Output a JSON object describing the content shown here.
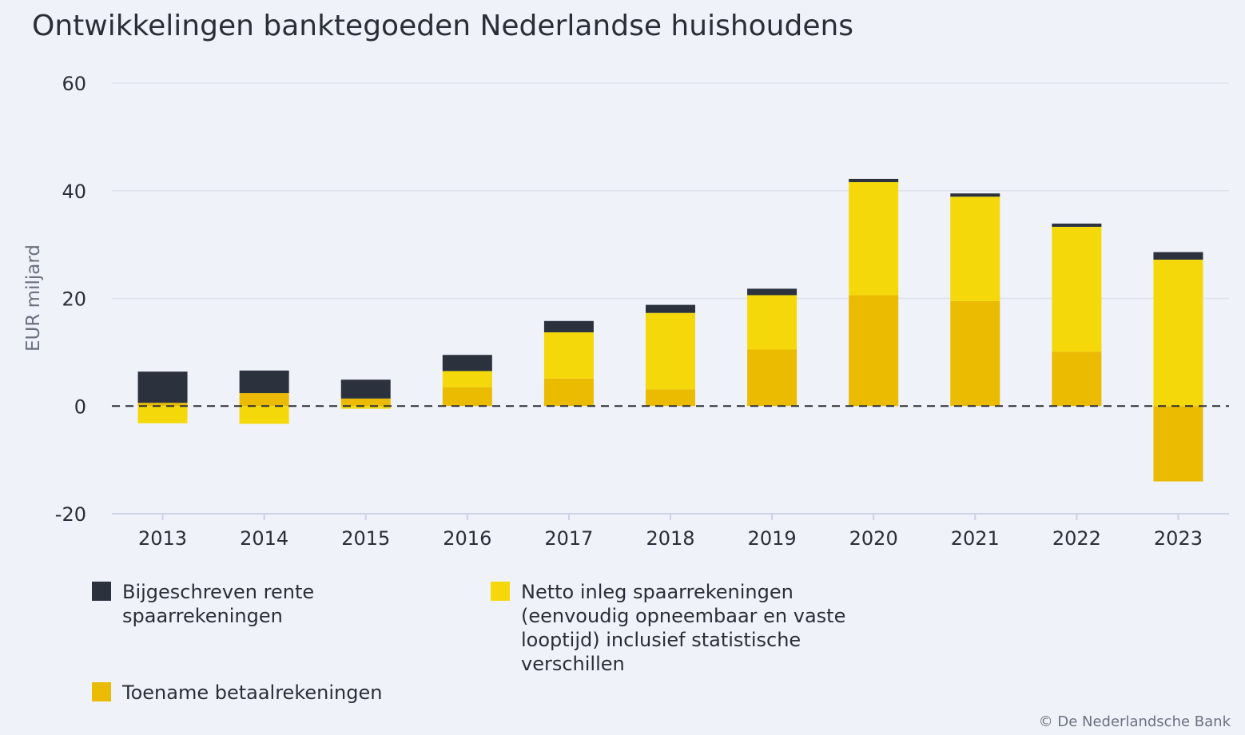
{
  "page": {
    "title": "Ontwikkelingen banktegoeden Nederlandse huishoudens",
    "copyright": "© De Nederlandsche Bank"
  },
  "colors": {
    "background": "#eff2f8",
    "rente": "#2b323e",
    "netto": "#f4d80a",
    "betaal": "#eabb00",
    "grid": "#dde1ea",
    "zero_line": "#2a2e36"
  },
  "chart_data": {
    "type": "bar",
    "stacked": true,
    "title": "Ontwikkelingen banktegoeden Nederlandse huishoudens",
    "xlabel": "",
    "ylabel": "EUR miljard",
    "ylim": [
      -20,
      60
    ],
    "yticks": [
      60,
      40,
      20,
      0,
      -20
    ],
    "ytick_labels": [
      "60",
      "40",
      "20",
      "0",
      "-20"
    ],
    "grid": true,
    "legend_position": "bottom",
    "categories": [
      "2013",
      "2014",
      "2015",
      "2016",
      "2017",
      "2018",
      "2019",
      "2020",
      "2021",
      "2022",
      "2023"
    ],
    "series": [
      {
        "key": "betaal",
        "name": "Toename betaalrekeningen",
        "color": "#eabb00",
        "values": [
          0.6,
          2.4,
          1.4,
          3.5,
          5.1,
          3.1,
          10.5,
          20.6,
          19.5,
          10.1,
          -14
        ]
      },
      {
        "key": "netto",
        "name": "Netto inleg spaarrekeningen (eenvoudig opneembaar en vaste looptijd) inclusief statistische verschillen",
        "color": "#f4d80a",
        "values": [
          -3.2,
          -3.3,
          -0.5,
          3.0,
          8.6,
          14.2,
          10.1,
          21.0,
          19.4,
          23.2,
          27.2
        ]
      },
      {
        "key": "rente",
        "name": "Bijgeschreven rente spaarrekeningen",
        "color": "#2b323e",
        "values": [
          5.8,
          4.2,
          3.5,
          3.0,
          2.1,
          1.5,
          1.2,
          0.6,
          0.6,
          0.6,
          1.4
        ]
      }
    ]
  },
  "legend": {
    "rente": "Bijgeschreven rente spaarrekeningen",
    "rente_line1": "Bijgeschreven rente",
    "rente_line2": "spaarrekeningen",
    "netto_line1": "Netto inleg spaarrekeningen",
    "netto_line2": "(eenvoudig opneembaar en vaste",
    "netto_line3": "looptijd) inclusief statistische",
    "netto_line4": "verschillen",
    "betaal": "Toename betaalrekeningen"
  }
}
